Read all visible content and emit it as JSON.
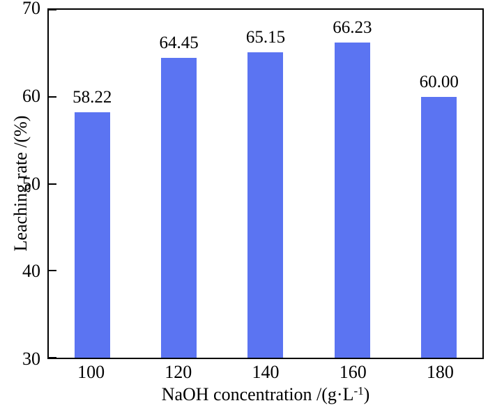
{
  "chart_data": {
    "type": "bar",
    "title": "",
    "categories": [
      "100",
      "120",
      "140",
      "160",
      "180"
    ],
    "values": [
      58.22,
      64.45,
      65.15,
      66.23,
      60.0
    ],
    "value_labels": [
      "58.22",
      "64.45",
      "65.15",
      "66.23",
      "60.00"
    ],
    "series_name": "Leaching rate",
    "xlabel": {
      "prefix": "NaOH concentration /(g·L",
      "sup": "-1",
      "suffix": ")"
    },
    "ylabel": "Leaching rate /(%)",
    "ylim": [
      30,
      70
    ],
    "yticks": [
      30,
      40,
      50,
      60,
      70
    ],
    "bar_color": "#5b74f2",
    "axis_color": "#000000",
    "grid": "off",
    "legend_position": "none",
    "bar_width_fraction": 0.41
  }
}
